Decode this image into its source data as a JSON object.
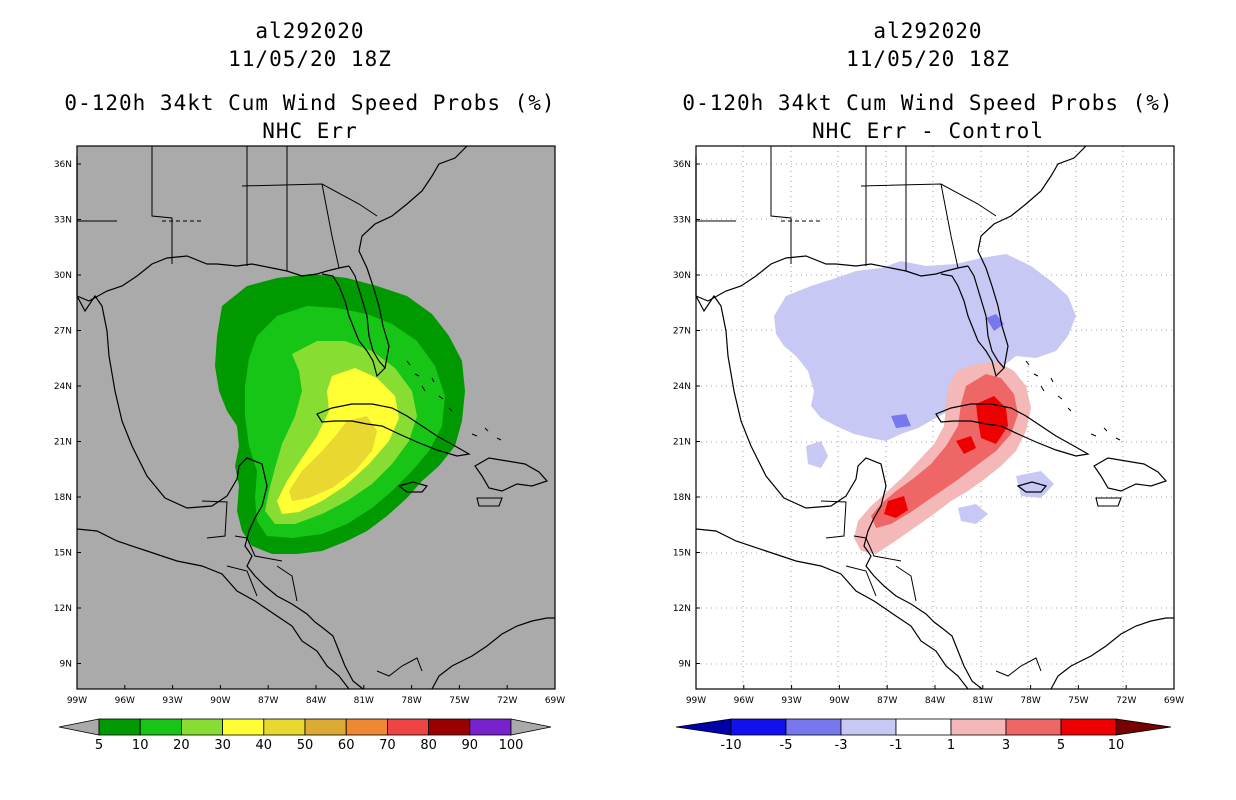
{
  "panels": [
    {
      "id": "left",
      "header": {
        "storm": "al292020",
        "datetime": "11/05/20 18Z"
      },
      "title": "0-120h 34kt Cum Wind Speed Probs (%)",
      "subtitle": "NHC Err",
      "lat_labels": [
        "36N",
        "33N",
        "30N",
        "27N",
        "24N",
        "21N",
        "18N",
        "15N",
        "12N",
        "9N"
      ],
      "lon_labels": [
        "99W",
        "96W",
        "93W",
        "90W",
        "87W",
        "84W",
        "81W",
        "78W",
        "75W",
        "72W",
        "69W"
      ],
      "legend": {
        "labels": [
          "5",
          "10",
          "20",
          "30",
          "40",
          "50",
          "60",
          "70",
          "80",
          "90",
          "100"
        ],
        "colors": [
          "#009a00",
          "#16c516",
          "#88dd33",
          "#ffff33",
          "#e8d830",
          "#ddaa33",
          "#ee8833",
          "#ee4444",
          "#990000",
          "#7722cc"
        ]
      },
      "background": "#aaaaaa"
    },
    {
      "id": "right",
      "header": {
        "storm": "al292020",
        "datetime": "11/05/20 18Z"
      },
      "title": "0-120h 34kt Cum Wind Speed Probs (%)",
      "subtitle": "NHC Err - Control",
      "lat_labels": [
        "36N",
        "33N",
        "30N",
        "27N",
        "24N",
        "21N",
        "18N",
        "15N",
        "12N",
        "9N"
      ],
      "lon_labels": [
        "99W",
        "96W",
        "93W",
        "90W",
        "87W",
        "84W",
        "81W",
        "78W",
        "75W",
        "72W",
        "69W"
      ],
      "legend": {
        "labels": [
          "-10",
          "-5",
          "-3",
          "-1",
          "1",
          "3",
          "5",
          "10"
        ],
        "colors": [
          "#0000aa",
          "#1111ee",
          "#7777ee",
          "#c8c8f4",
          "#ffffff",
          "#f4b8b8",
          "#ee6666",
          "#ee0000",
          "#770000"
        ]
      },
      "background": "#ffffff"
    }
  ]
}
